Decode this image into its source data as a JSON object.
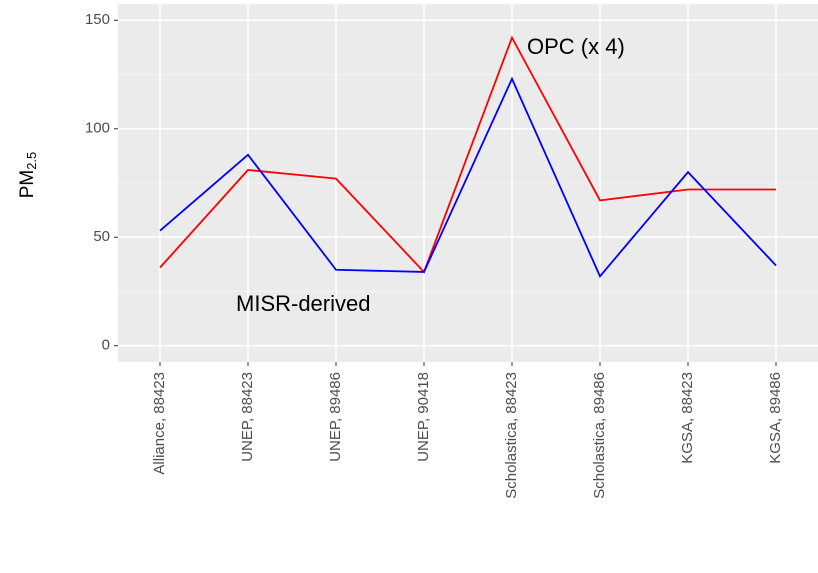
{
  "chart_data": {
    "type": "line",
    "ylabel": "PM",
    "ylabel_subscript": "2.5",
    "categories": [
      "Alliance, 88423",
      "UNEP, 88423",
      "UNEP, 89486",
      "UNEP, 90418",
      "Scholastica, 88423",
      "Scholastica, 89486",
      "KGSA, 88423",
      "KGSA, 89486"
    ],
    "series": [
      {
        "name": "OPC (x 4)",
        "color": "#ff0000",
        "values": [
          36,
          81,
          77,
          34,
          142,
          67,
          72,
          72
        ]
      },
      {
        "name": "MISR-derived",
        "color": "#0000ff",
        "values": [
          53,
          88,
          35,
          34,
          123,
          32,
          80,
          37
        ]
      }
    ],
    "ylim": [
      -7.5,
      157.5
    ],
    "yticks": [
      0,
      50,
      100,
      150
    ],
    "yminorticks": [
      25,
      75,
      125
    ],
    "grid": true
  }
}
